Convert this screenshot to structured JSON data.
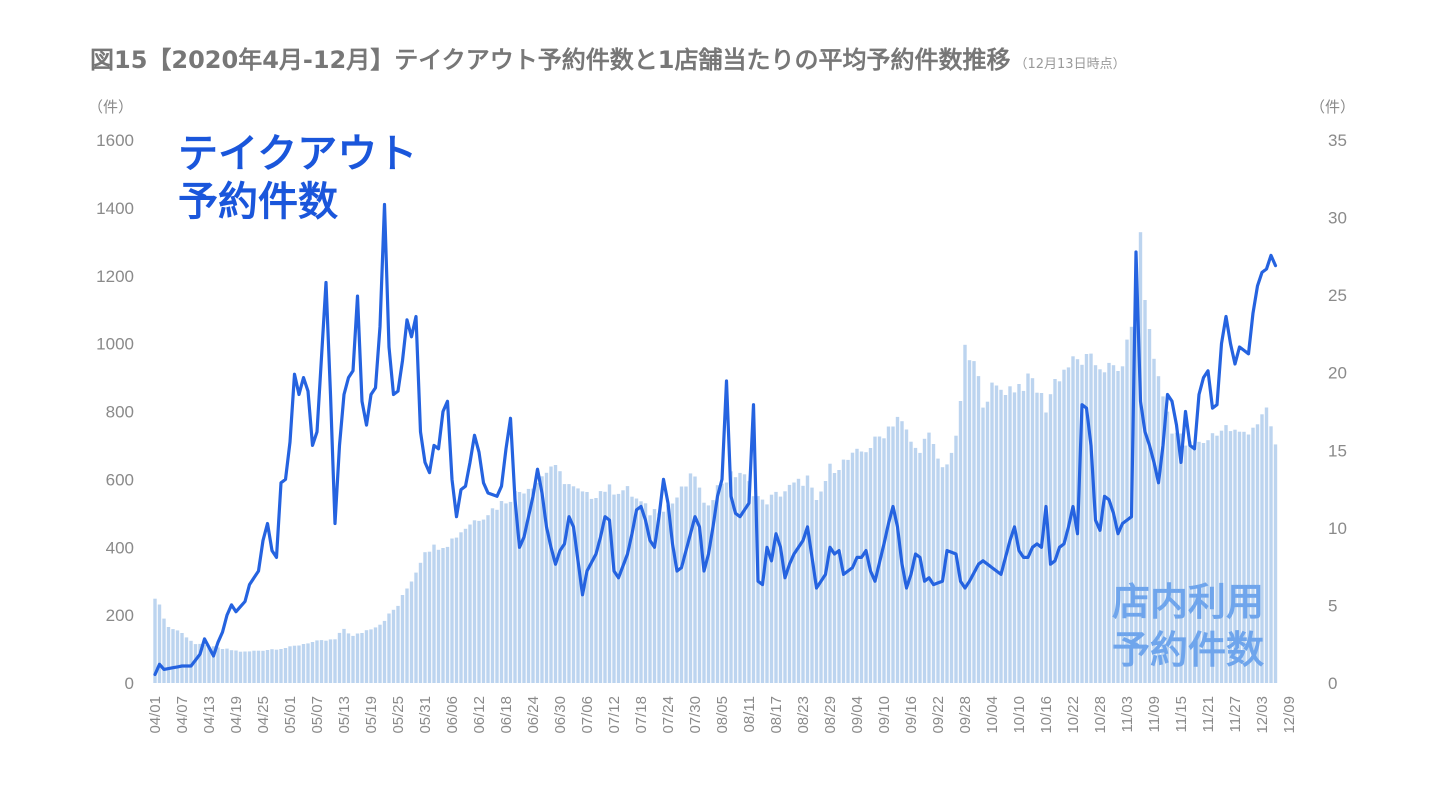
{
  "title": "図15【2020年4月-12月】テイクアウト予約件数と1店舗当たりの平均予約件数推移",
  "title_note": "（12月13日時点）",
  "left_unit": "（件）",
  "right_unit": "（件）",
  "series_label_takeout": [
    "テイクアウト",
    "予約件数"
  ],
  "series_label_store": [
    "店内利用",
    "予約件数"
  ],
  "colors": {
    "line": "#2563e0",
    "bar": "#bcd4ef",
    "text": "#888888"
  },
  "chart_data": {
    "type": "bar+line",
    "title": "図15【2020年4月-12月】テイクアウト予約件数と1店舗当たりの平均予約件数推移",
    "x_tick_labels": [
      "04/01",
      "04/07",
      "04/13",
      "04/19",
      "04/25",
      "05/01",
      "05/07",
      "05/13",
      "05/19",
      "05/25",
      "05/31",
      "06/06",
      "06/12",
      "06/18",
      "06/24",
      "06/30",
      "07/06",
      "07/12",
      "07/18",
      "07/24",
      "07/30",
      "08/05",
      "08/11",
      "08/17",
      "08/23",
      "08/29",
      "09/04",
      "09/10",
      "09/16",
      "09/22",
      "09/28",
      "10/04",
      "10/10",
      "10/16",
      "10/22",
      "10/28",
      "11/03",
      "11/09",
      "11/15",
      "11/21",
      "11/27",
      "12/03",
      "12/09"
    ],
    "x_start": "04/01",
    "num_days": 257,
    "y_left": {
      "label": "（件）",
      "min": 0,
      "max": 1600,
      "ticks": [
        0,
        200,
        400,
        600,
        800,
        1000,
        1200,
        1400,
        1600
      ]
    },
    "y_right": {
      "label": "（件）",
      "min": 0,
      "max": 35,
      "ticks": [
        0,
        5,
        10,
        15,
        20,
        25,
        30,
        35
      ]
    },
    "series": [
      {
        "name": "テイクアウト予約件数",
        "type": "line",
        "axis": "left",
        "keypoints": [
          [
            0,
            25
          ],
          [
            1,
            55
          ],
          [
            2,
            40
          ],
          [
            4,
            45
          ],
          [
            6,
            50
          ],
          [
            8,
            50
          ],
          [
            10,
            85
          ],
          [
            11,
            130
          ],
          [
            13,
            80
          ],
          [
            14,
            120
          ],
          [
            15,
            150
          ],
          [
            16,
            200
          ],
          [
            17,
            230
          ],
          [
            18,
            210
          ],
          [
            20,
            240
          ],
          [
            21,
            290
          ],
          [
            23,
            330
          ],
          [
            24,
            420
          ],
          [
            25,
            470
          ],
          [
            26,
            390
          ],
          [
            27,
            370
          ],
          [
            28,
            590
          ],
          [
            29,
            600
          ],
          [
            30,
            710
          ],
          [
            31,
            910
          ],
          [
            32,
            850
          ],
          [
            33,
            900
          ],
          [
            34,
            860
          ],
          [
            35,
            700
          ],
          [
            36,
            740
          ],
          [
            38,
            1180
          ],
          [
            39,
            850
          ],
          [
            40,
            470
          ],
          [
            41,
            700
          ],
          [
            42,
            850
          ],
          [
            43,
            900
          ],
          [
            44,
            920
          ],
          [
            45,
            1140
          ],
          [
            46,
            830
          ],
          [
            47,
            760
          ],
          [
            48,
            850
          ],
          [
            49,
            870
          ],
          [
            50,
            1050
          ],
          [
            51,
            1410
          ],
          [
            52,
            990
          ],
          [
            53,
            850
          ],
          [
            54,
            860
          ],
          [
            55,
            950
          ],
          [
            56,
            1070
          ],
          [
            57,
            1020
          ],
          [
            58,
            1080
          ],
          [
            59,
            740
          ],
          [
            60,
            650
          ],
          [
            61,
            620
          ],
          [
            62,
            700
          ],
          [
            63,
            690
          ],
          [
            64,
            800
          ],
          [
            65,
            830
          ],
          [
            66,
            600
          ],
          [
            67,
            490
          ],
          [
            68,
            570
          ],
          [
            69,
            580
          ],
          [
            70,
            650
          ],
          [
            71,
            730
          ],
          [
            72,
            680
          ],
          [
            73,
            590
          ],
          [
            74,
            560
          ],
          [
            76,
            550
          ],
          [
            77,
            580
          ],
          [
            78,
            690
          ],
          [
            79,
            780
          ],
          [
            80,
            540
          ],
          [
            81,
            400
          ],
          [
            82,
            430
          ],
          [
            84,
            550
          ],
          [
            85,
            630
          ],
          [
            86,
            560
          ],
          [
            87,
            460
          ],
          [
            88,
            400
          ],
          [
            89,
            350
          ],
          [
            90,
            390
          ],
          [
            91,
            410
          ],
          [
            92,
            490
          ],
          [
            93,
            460
          ],
          [
            94,
            360
          ],
          [
            95,
            260
          ],
          [
            96,
            330
          ],
          [
            98,
            380
          ],
          [
            99,
            430
          ],
          [
            100,
            490
          ],
          [
            101,
            480
          ],
          [
            102,
            330
          ],
          [
            103,
            310
          ],
          [
            105,
            380
          ],
          [
            106,
            440
          ],
          [
            107,
            510
          ],
          [
            108,
            520
          ],
          [
            109,
            480
          ],
          [
            110,
            420
          ],
          [
            111,
            400
          ],
          [
            112,
            490
          ],
          [
            113,
            600
          ],
          [
            114,
            530
          ],
          [
            115,
            410
          ],
          [
            116,
            330
          ],
          [
            117,
            340
          ],
          [
            119,
            440
          ],
          [
            120,
            490
          ],
          [
            121,
            460
          ],
          [
            122,
            330
          ],
          [
            123,
            380
          ],
          [
            124,
            460
          ],
          [
            125,
            550
          ],
          [
            126,
            600
          ],
          [
            127,
            890
          ],
          [
            128,
            550
          ],
          [
            129,
            500
          ],
          [
            130,
            490
          ],
          [
            131,
            510
          ],
          [
            132,
            530
          ],
          [
            133,
            820
          ],
          [
            134,
            300
          ],
          [
            135,
            290
          ],
          [
            136,
            400
          ],
          [
            137,
            360
          ],
          [
            138,
            440
          ],
          [
            139,
            400
          ],
          [
            140,
            310
          ],
          [
            141,
            350
          ],
          [
            142,
            380
          ],
          [
            144,
            420
          ],
          [
            145,
            460
          ],
          [
            146,
            370
          ],
          [
            147,
            280
          ],
          [
            148,
            300
          ],
          [
            149,
            320
          ],
          [
            150,
            400
          ],
          [
            151,
            380
          ],
          [
            152,
            390
          ],
          [
            153,
            320
          ],
          [
            155,
            340
          ],
          [
            156,
            370
          ],
          [
            157,
            370
          ],
          [
            158,
            390
          ],
          [
            159,
            330
          ],
          [
            160,
            300
          ],
          [
            162,
            410
          ],
          [
            163,
            470
          ],
          [
            164,
            520
          ],
          [
            165,
            460
          ],
          [
            166,
            350
          ],
          [
            167,
            280
          ],
          [
            168,
            320
          ],
          [
            169,
            380
          ],
          [
            170,
            370
          ],
          [
            171,
            300
          ],
          [
            172,
            310
          ],
          [
            173,
            290
          ],
          [
            175,
            300
          ],
          [
            176,
            390
          ],
          [
            178,
            380
          ],
          [
            179,
            300
          ],
          [
            180,
            280
          ],
          [
            181,
            300
          ],
          [
            183,
            350
          ],
          [
            184,
            360
          ],
          [
            185,
            350
          ],
          [
            186,
            340
          ],
          [
            188,
            320
          ],
          [
            189,
            370
          ],
          [
            190,
            420
          ],
          [
            191,
            460
          ],
          [
            192,
            390
          ],
          [
            193,
            370
          ],
          [
            194,
            370
          ],
          [
            195,
            400
          ],
          [
            196,
            410
          ],
          [
            197,
            400
          ],
          [
            198,
            520
          ],
          [
            199,
            350
          ],
          [
            200,
            360
          ],
          [
            201,
            400
          ],
          [
            202,
            410
          ],
          [
            203,
            460
          ],
          [
            204,
            520
          ],
          [
            205,
            440
          ],
          [
            206,
            820
          ],
          [
            207,
            810
          ],
          [
            208,
            700
          ],
          [
            209,
            480
          ],
          [
            210,
            450
          ],
          [
            211,
            550
          ],
          [
            212,
            540
          ],
          [
            213,
            500
          ],
          [
            214,
            440
          ],
          [
            215,
            470
          ],
          [
            216,
            480
          ],
          [
            217,
            490
          ],
          [
            218,
            1270
          ],
          [
            219,
            830
          ],
          [
            220,
            740
          ],
          [
            221,
            700
          ],
          [
            222,
            650
          ],
          [
            223,
            590
          ],
          [
            224,
            700
          ],
          [
            225,
            850
          ],
          [
            226,
            830
          ],
          [
            227,
            760
          ],
          [
            228,
            650
          ],
          [
            229,
            800
          ],
          [
            230,
            700
          ],
          [
            231,
            690
          ],
          [
            232,
            850
          ],
          [
            233,
            900
          ],
          [
            234,
            920
          ],
          [
            235,
            810
          ],
          [
            236,
            820
          ],
          [
            237,
            1000
          ],
          [
            238,
            1080
          ],
          [
            239,
            1000
          ],
          [
            240,
            940
          ],
          [
            241,
            990
          ],
          [
            243,
            970
          ],
          [
            244,
            1090
          ],
          [
            245,
            1170
          ],
          [
            246,
            1210
          ],
          [
            247,
            1220
          ],
          [
            248,
            1260
          ],
          [
            249,
            1230
          ]
        ]
      },
      {
        "name": "店内利用予約件数",
        "type": "bar",
        "axis": "right",
        "keypoints": [
          [
            0,
            5.6
          ],
          [
            3,
            3.6
          ],
          [
            5,
            3.4
          ],
          [
            7,
            3.0
          ],
          [
            9,
            2.5
          ],
          [
            15,
            2.2
          ],
          [
            20,
            2.0
          ],
          [
            30,
            2.3
          ],
          [
            34,
            2.6
          ],
          [
            40,
            2.8
          ],
          [
            42,
            3.5
          ],
          [
            44,
            3.0
          ],
          [
            50,
            3.8
          ],
          [
            54,
            5.0
          ],
          [
            58,
            7.2
          ],
          [
            60,
            8.6
          ],
          [
            65,
            9.0
          ],
          [
            70,
            10.3
          ],
          [
            75,
            11.2
          ],
          [
            80,
            12.2
          ],
          [
            85,
            13.0
          ],
          [
            88,
            14.0
          ],
          [
            93,
            12.5
          ],
          [
            96,
            12.0
          ],
          [
            100,
            12.5
          ],
          [
            105,
            12.4
          ],
          [
            110,
            11.0
          ],
          [
            115,
            11.6
          ],
          [
            120,
            13.5
          ],
          [
            122,
            11.3
          ],
          [
            126,
            13.0
          ],
          [
            130,
            13.6
          ],
          [
            135,
            11.6
          ],
          [
            140,
            12.4
          ],
          [
            145,
            13.2
          ],
          [
            147,
            11.5
          ],
          [
            150,
            13.8
          ],
          [
            155,
            14.5
          ],
          [
            160,
            15.5
          ],
          [
            165,
            17.2
          ],
          [
            169,
            15.0
          ],
          [
            172,
            15.8
          ],
          [
            175,
            13.8
          ],
          [
            178,
            15.5
          ],
          [
            180,
            21.2
          ],
          [
            182,
            20.5
          ],
          [
            184,
            18.3
          ],
          [
            186,
            18.9
          ],
          [
            190,
            19.0
          ],
          [
            195,
            19.5
          ],
          [
            198,
            17.8
          ],
          [
            200,
            19.5
          ],
          [
            203,
            20.5
          ],
          [
            206,
            20.8
          ],
          [
            210,
            20.5
          ],
          [
            214,
            20.0
          ],
          [
            216,
            21.5
          ],
          [
            218,
            25.5
          ],
          [
            219,
            29.3
          ],
          [
            220,
            24.5
          ],
          [
            223,
            19.5
          ],
          [
            226,
            16.5
          ],
          [
            229,
            15.4
          ],
          [
            231,
            15.1
          ],
          [
            234,
            15.8
          ],
          [
            236,
            16.2
          ],
          [
            238,
            16.5
          ],
          [
            241,
            16.0
          ],
          [
            244,
            16.6
          ],
          [
            247,
            17.3
          ],
          [
            248,
            16.5
          ],
          [
            249,
            15.3
          ]
        ]
      }
    ],
    "grid": false,
    "legend": "inline labels"
  }
}
